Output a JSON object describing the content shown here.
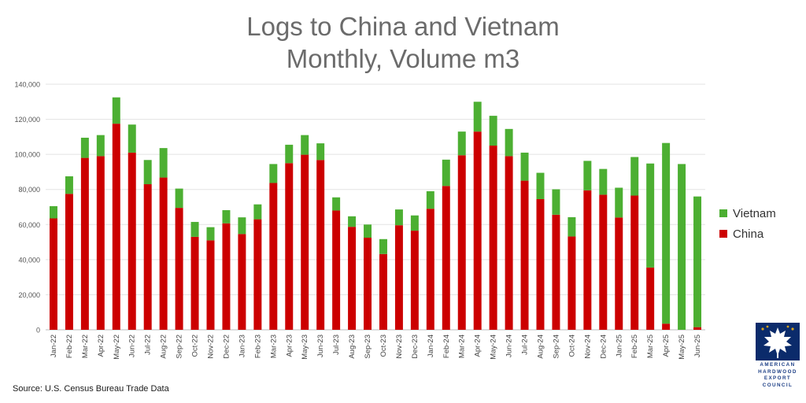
{
  "title_line1": "Logs to China and Vietnam",
  "title_line2": "Monthly, Volume m3",
  "source": "Source: U.S. Census Bureau Trade Data",
  "logo_text": [
    "AMERICAN",
    "HARDWOOD",
    "EXPORT",
    "COUNCIL"
  ],
  "chart_data": {
    "type": "bar",
    "stacked": true,
    "categories": [
      "Jan-22",
      "Feb-22",
      "Mar-22",
      "Apr-22",
      "May-22",
      "Jun-22",
      "Jul-22",
      "Aug-22",
      "Sep-22",
      "Oct-22",
      "Nov-22",
      "Dec-22",
      "Jan-23",
      "Feb-23",
      "Mar-23",
      "Apr-23",
      "May-23",
      "Jun-23",
      "Jul-23",
      "Aug-23",
      "Sep-23",
      "Oct-23",
      "Nov-23",
      "Dec-23",
      "Jan-24",
      "Feb-24",
      "Mar-24",
      "Apr-24",
      "May-24",
      "Jun-24",
      "Jul-24",
      "Aug-24",
      "Sep-24",
      "Oct-24",
      "Nov-24",
      "Dec-24",
      "Jan-25",
      "Feb-25",
      "Mar-25",
      "Apr-25",
      "May-25",
      "Jun-25"
    ],
    "series": [
      {
        "name": "China",
        "color": "#cc0000",
        "values": [
          63500,
          77500,
          98000,
          99000,
          117500,
          101000,
          83000,
          86800,
          69500,
          53000,
          51000,
          60700,
          54600,
          63000,
          83700,
          95000,
          99800,
          96800,
          68000,
          58700,
          52500,
          43200,
          59600,
          56500,
          69000,
          82000,
          99500,
          113000,
          105000,
          99000,
          85000,
          74500,
          65600,
          53200,
          79500,
          77000,
          64000,
          76500,
          35500,
          3500,
          0,
          1500
        ]
      },
      {
        "name": "Vietnam",
        "color": "#4caf32",
        "values": [
          7000,
          10000,
          11500,
          12000,
          15000,
          16000,
          13800,
          16800,
          11000,
          8500,
          7500,
          7500,
          9500,
          8500,
          10800,
          10500,
          11200,
          9500,
          7500,
          6000,
          7500,
          8500,
          9000,
          8700,
          10000,
          15000,
          13500,
          17000,
          17000,
          15500,
          16000,
          15000,
          14500,
          11000,
          16800,
          14700,
          17000,
          22000,
          59300,
          103000,
          94500,
          74500
        ]
      }
    ],
    "ylim": [
      0,
      140000
    ],
    "yticks": [
      0,
      20000,
      40000,
      60000,
      80000,
      100000,
      120000,
      140000
    ],
    "ytick_labels": [
      "0",
      "20,000",
      "40,000",
      "60,000",
      "80,000",
      "100,000",
      "120,000",
      "140,000"
    ],
    "grid": true,
    "legend": "right",
    "legend_order": [
      "Vietnam",
      "China"
    ]
  }
}
